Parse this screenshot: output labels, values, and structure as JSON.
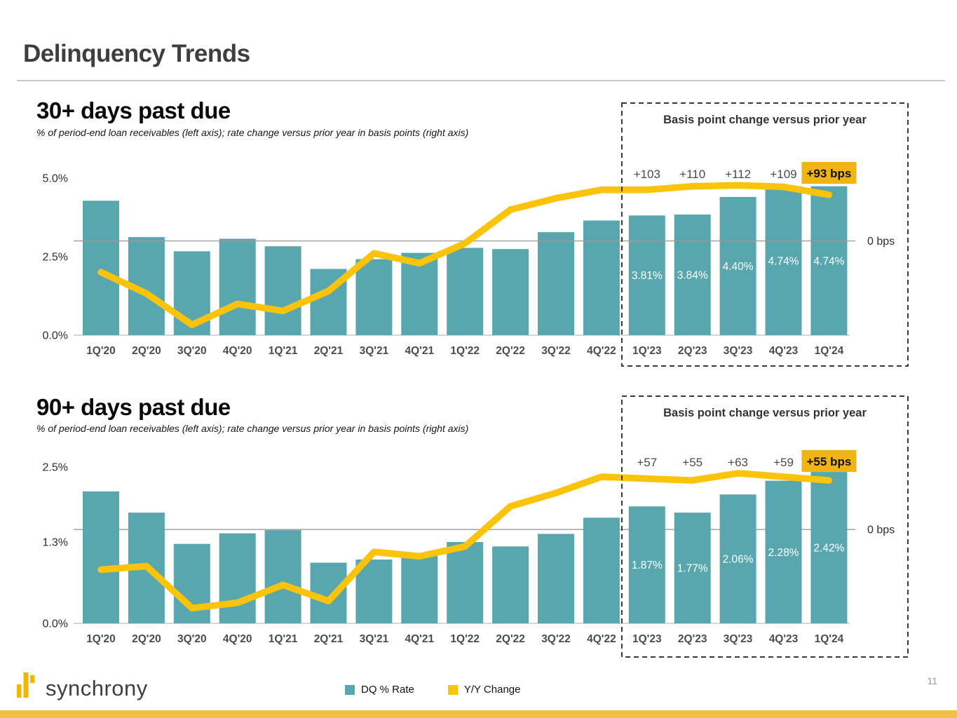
{
  "slide": {
    "title": "Delinquency Trends",
    "page_number": "11",
    "logo": {
      "wordmark": "synchrony"
    },
    "legend": [
      {
        "label": "DQ % Rate",
        "swatch_color": "#59A7AE"
      },
      {
        "label": "Y/Y Change",
        "swatch_color": "#FCC30B"
      }
    ]
  },
  "colors": {
    "bar_teal": "#59A7AE",
    "line_yellow": "#FCC30B",
    "highlight_gold": "#F0B414",
    "footer_strip_gold": "#F1BF44",
    "logo_gold": "#F2B705",
    "gridline_gray": "#999999",
    "axis_gray": "#c8c8c8",
    "dashed_box": "#3a3a3a",
    "tick_text": "#2e2e2e",
    "x_label_text": "#4c4c4c",
    "bps_label_text": "#4a4a4a",
    "bar_label_text": "#ffffff",
    "box_title_text": "#333333"
  },
  "chart_data": [
    {
      "type": "bar+line",
      "title": "30+ days past due",
      "subtitle": "% of period-end loan receivables (left axis); rate change versus prior year in basis points (right axis)",
      "categories": [
        "1Q'20",
        "2Q'20",
        "3Q'20",
        "4Q'20",
        "1Q'21",
        "2Q'21",
        "3Q'21",
        "4Q'21",
        "1Q'22",
        "2Q'22",
        "3Q'22",
        "4Q'22",
        "1Q'23",
        "2Q'23",
        "3Q'23",
        "4Q'23",
        "1Q'24"
      ],
      "series": [
        {
          "name": "DQ % Rate",
          "type": "bar",
          "axis": "left",
          "unit": "%",
          "values": [
            4.28,
            3.12,
            2.67,
            3.07,
            2.83,
            2.11,
            2.42,
            2.62,
            2.78,
            2.74,
            3.28,
            3.65,
            3.81,
            3.84,
            4.4,
            4.74,
            4.74
          ]
        },
        {
          "name": "Y/Y Change",
          "type": "line",
          "axis": "right",
          "unit": "bps",
          "values": [
            -63,
            -106,
            -169,
            -127,
            -141,
            -101,
            -25,
            -45,
            -5,
            63,
            86,
            103,
            103,
            110,
            112,
            109,
            93
          ]
        }
      ],
      "left_axis": {
        "ticks": [
          {
            "value": 5.0,
            "label": "5.0%"
          },
          {
            "value": 2.5,
            "label": "2.5%"
          },
          {
            "value": 0.0,
            "label": "0.0%"
          }
        ],
        "min": 0,
        "max": 5.0
      },
      "right_axis": {
        "zero_label": "0 bps",
        "zero_at_left_pct": 3.0,
        "bps_per_left_pct": 63.3
      },
      "value_labels": [
        {
          "index": 12,
          "text": "3.81%"
        },
        {
          "index": 13,
          "text": "3.84%"
        },
        {
          "index": 14,
          "text": "4.40%"
        },
        {
          "index": 15,
          "text": "4.74%"
        },
        {
          "index": 16,
          "text": "4.74%"
        }
      ],
      "bps_labels": [
        {
          "index": 12,
          "text": "+103"
        },
        {
          "index": 13,
          "text": "+110"
        },
        {
          "index": 14,
          "text": "+112"
        },
        {
          "index": 15,
          "text": "+109"
        },
        {
          "index": 16,
          "text": "+93 bps",
          "highlight": true
        }
      ],
      "callout": {
        "title": "Basis point change versus prior year",
        "start_category": "1Q'23"
      },
      "gridline_on_top": true,
      "grid": true,
      "legend_position": "bottom"
    },
    {
      "type": "bar+line",
      "title": "90+ days past due",
      "subtitle": "% of period-end loan receivables (left axis); rate change versus prior year in basis points (right axis)",
      "categories": [
        "1Q'20",
        "2Q'20",
        "3Q'20",
        "4Q'20",
        "1Q'21",
        "2Q'21",
        "3Q'21",
        "4Q'21",
        "1Q'22",
        "2Q'22",
        "3Q'22",
        "4Q'22",
        "1Q'23",
        "2Q'23",
        "3Q'23",
        "4Q'23",
        "1Q'24"
      ],
      "series": [
        {
          "name": "DQ % Rate",
          "type": "bar",
          "axis": "left",
          "unit": "%",
          "values": [
            2.11,
            1.77,
            1.27,
            1.44,
            1.49,
            0.97,
            1.02,
            1.1,
            1.3,
            1.23,
            1.43,
            1.69,
            1.87,
            1.77,
            2.06,
            2.28,
            2.42
          ]
        },
        {
          "name": "Y/Y Change",
          "type": "line",
          "axis": "right",
          "unit": "bps",
          "values": [
            -45,
            -41,
            -88,
            -82,
            -62,
            -80,
            -25,
            -30,
            -19,
            26,
            41,
            59,
            57,
            55,
            63,
            59,
            55
          ]
        }
      ],
      "left_axis": {
        "ticks": [
          {
            "value": 2.5,
            "label": "2.5%"
          },
          {
            "value": 1.3,
            "label": "1.3%"
          },
          {
            "value": 0.0,
            "label": "0.0%"
          }
        ],
        "min": 0,
        "max": 2.5
      },
      "right_axis": {
        "zero_label": "0 bps",
        "zero_at_left_pct": 1.5,
        "bps_per_left_pct": 70
      },
      "value_labels": [
        {
          "index": 12,
          "text": "1.87%"
        },
        {
          "index": 13,
          "text": "1.77%"
        },
        {
          "index": 14,
          "text": "2.06%"
        },
        {
          "index": 15,
          "text": "2.28%"
        },
        {
          "index": 16,
          "text": "2.42%"
        }
      ],
      "bps_labels": [
        {
          "index": 12,
          "text": "+57"
        },
        {
          "index": 13,
          "text": "+55"
        },
        {
          "index": 14,
          "text": "+63"
        },
        {
          "index": 15,
          "text": "+59"
        },
        {
          "index": 16,
          "text": "+55 bps",
          "highlight": true
        }
      ],
      "callout": {
        "title": "Basis point change versus prior year",
        "start_category": "1Q'23"
      },
      "gridline_on_top": false,
      "grid": true,
      "legend_position": "bottom"
    }
  ]
}
